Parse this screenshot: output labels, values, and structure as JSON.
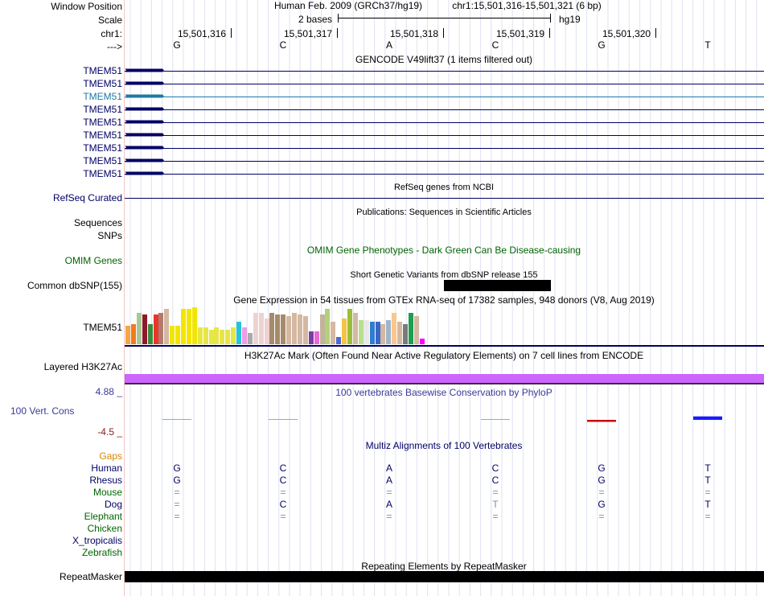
{
  "header": {
    "window_position_label": "Window Position",
    "scale_label": "Scale",
    "chrom_label": "chr1:",
    "arrow_label": "--->",
    "title": "Human Feb. 2009 (GRCh37/hg19)",
    "position": "chr1:15,501,316-15,501,321 (6 bp)",
    "scale_text": "2 bases",
    "assembly": "hg19"
  },
  "ruler": {
    "positions": [
      "15,501,316",
      "15,501,317",
      "15,501,318",
      "15,501,319",
      "15,501,320"
    ]
  },
  "bases": [
    "G",
    "C",
    "A",
    "C",
    "G",
    "T"
  ],
  "gencode": {
    "title": "GENCODE V49lift37 (1 items filtered out)",
    "genes": [
      "TMEM51",
      "TMEM51",
      "TMEM51",
      "TMEM51",
      "TMEM51",
      "TMEM51",
      "TMEM51",
      "TMEM51",
      "TMEM51"
    ],
    "highlight_index": 2
  },
  "refseq": {
    "label": "RefSeq Curated",
    "title": "RefSeq genes from NCBI"
  },
  "publications": {
    "title": "Publications: Sequences in Scientific Articles",
    "sequences_label": "Sequences",
    "snps_label": "SNPs"
  },
  "omim": {
    "label": "OMIM Genes",
    "title": "OMIM Gene Phenotypes - Dark Green Can Be Disease-causing"
  },
  "dbsnp": {
    "label": "Common dbSNP(155)",
    "title": "Short Genetic Variants from dbSNP release 155"
  },
  "gtex": {
    "label": "TMEM51",
    "title": "Gene Expression in 54 tissues from GTEx RNA-seq of 17382 samples, 948 donors (V8, Aug 2019)",
    "tissue_values": [
      0.5,
      0.55,
      0.85,
      0.8,
      0.55,
      0.8,
      0.85,
      0.95,
      0.5,
      0.5,
      0.95,
      0.95,
      1.0,
      0.45,
      0.45,
      0.4,
      0.45,
      0.4,
      0.4,
      0.45,
      0.6,
      0.45,
      0.3,
      0.85,
      0.85,
      0.7,
      0.85,
      0.8,
      0.8,
      0.75,
      0.85,
      0.8,
      0.75,
      0.35,
      0.35,
      0.8,
      0.95,
      0.6,
      0.2,
      0.7,
      0.95,
      0.85,
      0.65,
      0.65,
      0.6,
      0.6,
      0.55,
      0.65,
      0.85,
      0.6,
      0.55,
      0.85,
      0.75,
      0.15
    ],
    "tissue_colors": [
      "#f4a742",
      "#f07b21",
      "#a8c794",
      "#8c1a2a",
      "#3c8a3e",
      "#e8372a",
      "#b2796f",
      "#d4b8a2",
      "#f2e600",
      "#f2e600",
      "#f2e600",
      "#f2e600",
      "#f2e600",
      "#e6e648",
      "#e6e648",
      "#e6e648",
      "#e6e648",
      "#e6e648",
      "#e6e648",
      "#e6e648",
      "#24c6d6",
      "#ef9ce8",
      "#aaaaaa",
      "#eed2d2",
      "#eed2d2",
      "#eed2d2",
      "#a58b6a",
      "#a58b6a",
      "#a58b6a",
      "#d4b8a2",
      "#d4b8a2",
      "#d4b8a2",
      "#d4b8a2",
      "#7a3fa1",
      "#e36ad8",
      "#c2b39a",
      "#b3d07d",
      "#d4b8a2",
      "#5268c8",
      "#f4c542",
      "#9abf38",
      "#d4b8a2",
      "#b7e08d",
      "#e8e8e8",
      "#2e7dd1",
      "#3b66c8",
      "#d4b8a2",
      "#a2b5c8",
      "#fac78c",
      "#d4b8a2",
      "#7a7a7a",
      "#1c9e53",
      "#d4b8a2",
      "#ff00ff"
    ]
  },
  "h3k27ac": {
    "label": "Layered H3K27Ac",
    "title": "H3K27Ac Mark (Often Found Near Active Regulatory Elements) on 7 cell lines from ENCODE"
  },
  "phylop": {
    "label": "100 Vert. Cons",
    "title": "100 vertebrates Basewise Conservation by PhyloP",
    "max_label": "4.88 _",
    "min_label": "-4.5 _",
    "scores": [
      0.05,
      0.05,
      0.0,
      0.05,
      -0.2,
      0.35
    ],
    "colors": {
      "pos": "#1b1bff",
      "neg": "#c80000",
      "neutral": "#8fbf5f"
    }
  },
  "multiz": {
    "title": "Multiz Alignments of 100 Vertebrates",
    "gaps_label": "Gaps",
    "species": [
      {
        "name": "Human",
        "bases": [
          "G",
          "C",
          "A",
          "C",
          "G",
          "T"
        ],
        "color": "navy"
      },
      {
        "name": "Rhesus",
        "bases": [
          "G",
          "C",
          "A",
          "C",
          "G",
          "T"
        ],
        "color": "navy"
      },
      {
        "name": "Mouse",
        "bases": [
          "=",
          "=",
          "=",
          "=",
          "=",
          "="
        ],
        "color": "green"
      },
      {
        "name": "Dog",
        "bases": [
          "=",
          "C",
          "A",
          "T",
          "G",
          "T"
        ],
        "color": "navy"
      },
      {
        "name": "Elephant",
        "bases": [
          "=",
          "=",
          "=",
          "=",
          "=",
          "="
        ],
        "color": "green"
      },
      {
        "name": "Chicken",
        "bases": [
          "",
          "",
          "",
          "",
          "",
          ""
        ],
        "color": "green"
      },
      {
        "name": "X_tropicalis",
        "bases": [
          "",
          "",
          "",
          "",
          "",
          ""
        ],
        "color": "navy"
      },
      {
        "name": "Zebrafish",
        "bases": [
          "",
          "",
          "",
          "",
          "",
          ""
        ],
        "color": "green"
      }
    ]
  },
  "repeatmasker": {
    "label": "RepeatMasker",
    "title": "Repeating Elements by RepeatMasker"
  }
}
